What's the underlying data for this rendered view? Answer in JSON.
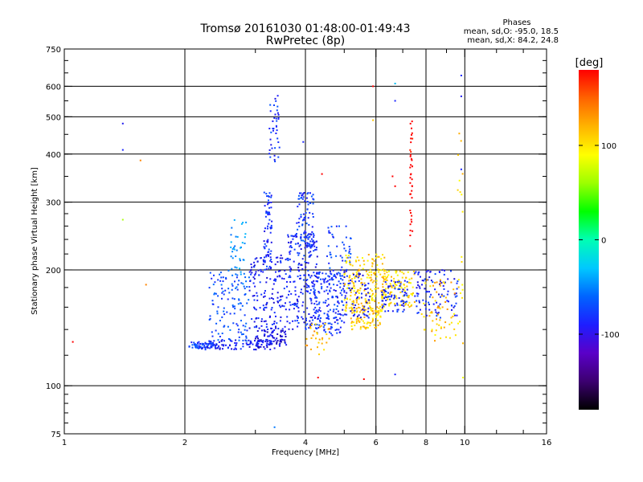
{
  "chart_data": {
    "type": "scatter",
    "title": "Tromsø 20161030 01:48:00-01:49:43",
    "subtitle": "RwPretec (8p)",
    "xlabel": "Frequency [MHz]",
    "ylabel": "Stationary phase Virtual Height [km]",
    "x_scale": "log",
    "y_scale": "log",
    "xlim": [
      1,
      16
    ],
    "ylim": [
      75,
      750
    ],
    "x_ticks": [
      {
        "value": 1,
        "label": "1"
      },
      {
        "value": 2,
        "label": "2"
      },
      {
        "value": 4,
        "label": "4"
      },
      {
        "value": 6,
        "label": "6"
      },
      {
        "value": 8,
        "label": "8"
      },
      {
        "value": 10,
        "label": "10"
      },
      {
        "value": 16,
        "label": "16"
      }
    ],
    "x_grid": [
      2,
      4,
      6,
      8,
      10
    ],
    "x_minor_ticks": [
      3,
      5,
      7,
      9,
      12,
      14
    ],
    "y_ticks": [
      {
        "value": 75,
        "label": "75"
      },
      {
        "value": 100,
        "label": "100"
      },
      {
        "value": 200,
        "label": "200"
      },
      {
        "value": 300,
        "label": "300"
      },
      {
        "value": 400,
        "label": "400"
      },
      {
        "value": 500,
        "label": "500"
      },
      {
        "value": 600,
        "label": "600"
      },
      {
        "value": 750,
        "label": "750"
      }
    ],
    "y_grid": [
      100,
      200,
      300,
      400,
      500,
      600
    ],
    "legend_lines": [
      "Phases",
      "mean, sd,O: -95.0, 18.5",
      "mean, sd,X:  84.2, 24.8"
    ],
    "colorbar": {
      "label": "[deg]",
      "range": [
        -180,
        180
      ],
      "ticks": [
        {
          "value": 100,
          "label": "100"
        },
        {
          "value": 0,
          "label": "0"
        },
        {
          "value": -100,
          "label": "-100"
        }
      ],
      "colors": [
        "#000000",
        "#3c0070",
        "#5a00c8",
        "#1e1eff",
        "#0064ff",
        "#00c8ff",
        "#00ffb4",
        "#00ff00",
        "#9cff00",
        "#ffff00",
        "#ffb400",
        "#ff6400",
        "#ff0000"
      ]
    },
    "point_color_scale": [
      "#1a00a0",
      "#1e1eff",
      "#0064ff",
      "#00b4ff",
      "#00ff96",
      "#c8ff00",
      "#ffff00",
      "#ffa000",
      "#ff0000"
    ],
    "clusters": [
      {
        "x": [
          2.05,
          2.4
        ],
        "y": [
          125,
          130
        ],
        "phase": -90,
        "n": 60
      },
      {
        "x": [
          2.2,
          3.3
        ],
        "y": [
          124,
          132
        ],
        "phase": -105,
        "n": 90
      },
      {
        "x": [
          2.3,
          2.9
        ],
        "y": [
          130,
          200
        ],
        "phase": -80,
        "n": 120
      },
      {
        "x": [
          2.6,
          2.85
        ],
        "y": [
          180,
          270
        ],
        "phase": -50,
        "n": 40
      },
      {
        "x": [
          3.0,
          3.6
        ],
        "y": [
          125,
          140
        ],
        "phase": -115,
        "n": 80
      },
      {
        "x": [
          2.9,
          3.6
        ],
        "y": [
          140,
          220
        ],
        "phase": -105,
        "n": 160
      },
      {
        "x": [
          3.15,
          3.3
        ],
        "y": [
          200,
          320
        ],
        "phase": -95,
        "n": 70
      },
      {
        "x": [
          3.25,
          3.45
        ],
        "y": [
          380,
          570
        ],
        "phase": -95,
        "n": 40
      },
      {
        "x": [
          3.6,
          4.3
        ],
        "y": [
          140,
          250
        ],
        "phase": -100,
        "n": 220
      },
      {
        "x": [
          3.8,
          4.2
        ],
        "y": [
          230,
          320
        ],
        "phase": -90,
        "n": 80
      },
      {
        "x": [
          4.2,
          5.0
        ],
        "y": [
          135,
          200
        ],
        "phase": -95,
        "n": 160
      },
      {
        "x": [
          4.5,
          5.2
        ],
        "y": [
          175,
          260
        ],
        "phase": -90,
        "n": 70
      },
      {
        "x": [
          4.0,
          4.6
        ],
        "y": [
          120,
          145
        ],
        "phase": 95,
        "n": 30
      },
      {
        "x": [
          5.0,
          6.3
        ],
        "y": [
          155,
          220
        ],
        "phase": 85,
        "n": 200
      },
      {
        "x": [
          5.2,
          6.2
        ],
        "y": [
          140,
          160
        ],
        "phase": 90,
        "n": 80
      },
      {
        "x": [
          5.0,
          5.8
        ],
        "y": [
          150,
          200
        ],
        "phase": -110,
        "n": 60
      },
      {
        "x": [
          6.2,
          7.5
        ],
        "y": [
          160,
          200
        ],
        "phase": 80,
        "n": 110
      },
      {
        "x": [
          6.2,
          7.2
        ],
        "y": [
          155,
          190
        ],
        "phase": -100,
        "n": 70
      },
      {
        "x": [
          7.3,
          7.4
        ],
        "y": [
          230,
          510
        ],
        "phase": 150,
        "n": 40
      },
      {
        "x": [
          7.5,
          9.6
        ],
        "y": [
          150,
          200
        ],
        "phase": -100,
        "n": 100
      },
      {
        "x": [
          7.8,
          9.5
        ],
        "y": [
          130,
          190
        ],
        "phase": 90,
        "n": 60
      },
      {
        "x": [
          9.6,
          9.9
        ],
        "y": [
          105,
          470
        ],
        "phase": 80,
        "n": 20
      }
    ],
    "points": [
      {
        "x": 1.4,
        "y": 480,
        "phase": -110
      },
      {
        "x": 1.4,
        "y": 410,
        "phase": -100
      },
      {
        "x": 1.55,
        "y": 385,
        "phase": 110
      },
      {
        "x": 1.4,
        "y": 270,
        "phase": 30
      },
      {
        "x": 1.05,
        "y": 130,
        "phase": 160
      },
      {
        "x": 1.6,
        "y": 183,
        "phase": 110
      },
      {
        "x": 3.35,
        "y": 78,
        "phase": -60
      },
      {
        "x": 3.95,
        "y": 430,
        "phase": -100
      },
      {
        "x": 4.4,
        "y": 355,
        "phase": 160
      },
      {
        "x": 5.9,
        "y": 600,
        "phase": 150
      },
      {
        "x": 6.7,
        "y": 610,
        "phase": -30
      },
      {
        "x": 6.7,
        "y": 550,
        "phase": -100
      },
      {
        "x": 9.8,
        "y": 640,
        "phase": -100
      },
      {
        "x": 9.8,
        "y": 565,
        "phase": -110
      },
      {
        "x": 9.8,
        "y": 365,
        "phase": -100
      },
      {
        "x": 4.3,
        "y": 105,
        "phase": 150
      },
      {
        "x": 5.6,
        "y": 104,
        "phase": 150
      },
      {
        "x": 6.7,
        "y": 107,
        "phase": -100
      },
      {
        "x": 9.9,
        "y": 105,
        "phase": 60
      },
      {
        "x": 5.9,
        "y": 490,
        "phase": 90
      },
      {
        "x": 6.6,
        "y": 350,
        "phase": 140
      },
      {
        "x": 6.7,
        "y": 330,
        "phase": 150
      }
    ]
  }
}
